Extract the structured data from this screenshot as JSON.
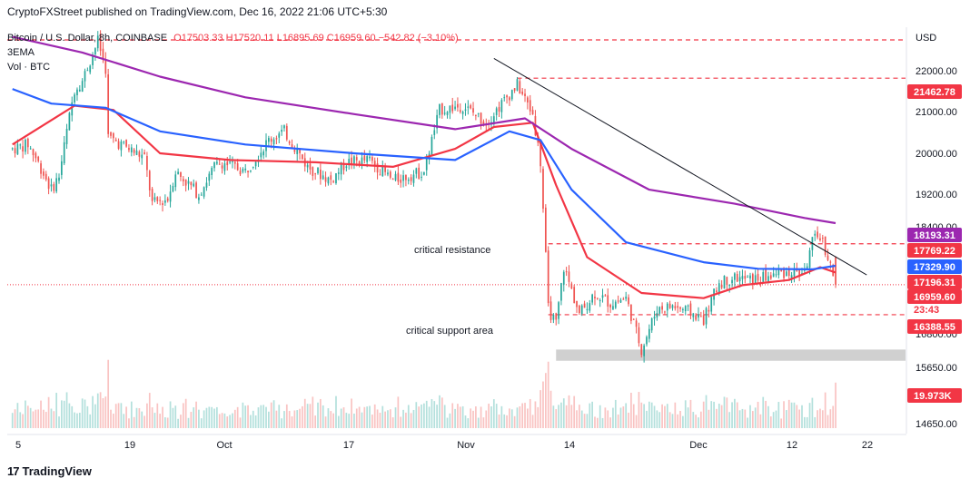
{
  "header": {
    "text": "CryptoFXStreet published on TradingView.com, Dec 16, 2022 21:06 UTC+5:30"
  },
  "legend": {
    "symbol": "Bitcoin / U.S. Dollar, 8h, COINBASE",
    "ohlc": "O17503.33  H17520.11  L16895.69  C16959.60  −542.82 (−3.10%)",
    "indicator": "3EMA",
    "volume": "Vol · BTC"
  },
  "axis": {
    "currency": "USD",
    "price_ticks": [
      "22000.00",
      "21000.00",
      "20000.00",
      "19200.00",
      "18400.00",
      "16800.00",
      "15650.00",
      "14650.00"
    ],
    "time_ticks": [
      "5",
      "19",
      "Oct",
      "17",
      "Nov",
      "14",
      "Dec",
      "12",
      "22"
    ]
  },
  "price_labels": [
    {
      "text": "21462.78",
      "color": "#f23645"
    },
    {
      "text": "18193.31",
      "color": "#9c27b0"
    },
    {
      "text": "17769.22",
      "color": "#f23645"
    },
    {
      "text": "17329.90",
      "color": "#2962ff"
    },
    {
      "text": "17196.31",
      "color": "#f23645"
    },
    {
      "text": "16959.60",
      "color": "#f23645"
    },
    {
      "text": "23:43",
      "color": "#f23645"
    },
    {
      "text": "16388.55",
      "color": "#f23645"
    },
    {
      "text": "19.973K",
      "color": "#f23645"
    }
  ],
  "annotations": {
    "resistance": "critical resistance",
    "support": "critical support area"
  },
  "footer": {
    "logo": "17",
    "brand": "TradingView"
  },
  "colors": {
    "up": "#26a69a",
    "down": "#ef5350",
    "ema_fast": "#f23645",
    "ema_mid": "#2962ff",
    "ema_slow": "#9c27b0",
    "level": "#f23645",
    "support_zone": "#c8c8c8"
  },
  "chart_data": {
    "type": "candlestick",
    "title": "Bitcoin / U.S. Dollar, 8h, COINBASE",
    "ylabel": "USD",
    "ylim": [
      14400,
      22700
    ],
    "yscale": "log",
    "grid": false,
    "last": {
      "open": 17503.33,
      "high": 17520.11,
      "low": 16895.69,
      "close": 16959.6,
      "change": -542.82,
      "change_pct": -3.1
    },
    "price_path": [
      [
        "2022-09-01",
        19800
      ],
      [
        "2022-09-03",
        19900
      ],
      [
        "2022-09-04",
        19600
      ],
      [
        "2022-09-06",
        18900
      ],
      [
        "2022-09-07",
        19200
      ],
      [
        "2022-09-09",
        21200
      ],
      [
        "2022-09-10",
        21400
      ],
      [
        "2022-09-12",
        22400
      ],
      [
        "2022-09-13",
        21700
      ],
      [
        "2022-09-13",
        20100
      ],
      [
        "2022-09-16",
        19800
      ],
      [
        "2022-09-18",
        19600
      ],
      [
        "2022-09-19",
        18600
      ],
      [
        "2022-09-21",
        18700
      ],
      [
        "2022-09-22",
        19300
      ],
      [
        "2022-09-25",
        18800
      ],
      [
        "2022-09-27",
        19400
      ],
      [
        "2022-09-28",
        19500
      ],
      [
        "2022-10-01",
        19300
      ],
      [
        "2022-10-04",
        20000
      ],
      [
        "2022-10-06",
        20200
      ],
      [
        "2022-10-09",
        19400
      ],
      [
        "2022-10-12",
        19100
      ],
      [
        "2022-10-14",
        19500
      ],
      [
        "2022-10-17",
        19550
      ],
      [
        "2022-10-20",
        19100
      ],
      [
        "2022-10-22",
        19200
      ],
      [
        "2022-10-24",
        19300
      ],
      [
        "2022-10-26",
        20700
      ],
      [
        "2022-10-29",
        20800
      ],
      [
        "2022-11-01",
        20400
      ],
      [
        "2022-11-05",
        21300
      ],
      [
        "2022-11-07",
        20600
      ],
      [
        "2022-11-08",
        19500
      ],
      [
        "2022-11-09",
        16500
      ],
      [
        "2022-11-10",
        16200
      ],
      [
        "2022-11-11",
        17300
      ],
      [
        "2022-11-13",
        16400
      ],
      [
        "2022-11-15",
        16800
      ],
      [
        "2022-11-17",
        16600
      ],
      [
        "2022-11-19",
        16700
      ],
      [
        "2022-11-21",
        15750
      ],
      [
        "2022-11-23",
        16500
      ],
      [
        "2022-11-25",
        16550
      ],
      [
        "2022-11-27",
        16450
      ],
      [
        "2022-11-29",
        16300
      ],
      [
        "2022-12-01",
        17000
      ],
      [
        "2022-12-03",
        17100
      ],
      [
        "2022-12-05",
        17050
      ],
      [
        "2022-12-07",
        17100
      ],
      [
        "2022-12-09",
        17200
      ],
      [
        "2022-12-12",
        17200
      ],
      [
        "2022-12-13",
        17800
      ],
      [
        "2022-12-14",
        17950
      ],
      [
        "2022-12-15",
        17500
      ],
      [
        "2022-12-16",
        16959.6
      ]
    ],
    "series": [
      {
        "name": "EMA",
        "color": "#f23645",
        "values": [
          [
            "2022-09-01",
            19900
          ],
          [
            "2022-09-09",
            20800
          ],
          [
            "2022-09-14",
            20700
          ],
          [
            "2022-09-20",
            19700
          ],
          [
            "2022-09-29",
            19550
          ],
          [
            "2022-10-10",
            19500
          ],
          [
            "2022-10-20",
            19400
          ],
          [
            "2022-10-28",
            19800
          ],
          [
            "2022-11-02",
            20300
          ],
          [
            "2022-11-07",
            20400
          ],
          [
            "2022-11-10",
            19000
          ],
          [
            "2022-11-14",
            17500
          ],
          [
            "2022-11-21",
            16800
          ],
          [
            "2022-11-29",
            16700
          ],
          [
            "2022-12-04",
            16950
          ],
          [
            "2022-12-10",
            17050
          ],
          [
            "2022-12-14",
            17300
          ],
          [
            "2022-12-16",
            17196.31
          ]
        ]
      },
      {
        "name": "EMA",
        "color": "#2962ff",
        "values": [
          [
            "2022-09-01",
            21200
          ],
          [
            "2022-09-06",
            20850
          ],
          [
            "2022-09-13",
            20750
          ],
          [
            "2022-09-20",
            20200
          ],
          [
            "2022-10-01",
            19900
          ],
          [
            "2022-10-15",
            19700
          ],
          [
            "2022-10-28",
            19550
          ],
          [
            "2022-11-04",
            20200
          ],
          [
            "2022-11-08",
            20000
          ],
          [
            "2022-11-12",
            18900
          ],
          [
            "2022-11-19",
            17800
          ],
          [
            "2022-11-29",
            17400
          ],
          [
            "2022-12-06",
            17270
          ],
          [
            "2022-12-13",
            17260
          ],
          [
            "2022-12-16",
            17329.9
          ]
        ]
      },
      {
        "name": "EMA",
        "color": "#9c27b0",
        "values": [
          [
            "2022-09-01",
            22500
          ],
          [
            "2022-09-10",
            22100
          ],
          [
            "2022-09-20",
            21500
          ],
          [
            "2022-10-01",
            21000
          ],
          [
            "2022-10-15",
            20600
          ],
          [
            "2022-10-28",
            20250
          ],
          [
            "2022-11-06",
            20500
          ],
          [
            "2022-11-12",
            19800
          ],
          [
            "2022-11-22",
            18900
          ],
          [
            "2022-12-03",
            18600
          ],
          [
            "2022-12-12",
            18300
          ],
          [
            "2022-12-16",
            18193.31
          ]
        ]
      }
    ],
    "levels": [
      21462.78,
      17769.22,
      16959.6,
      16388.55
    ],
    "support_zone": [
      15550,
      15750
    ],
    "trendline": [
      [
        "2022-11-02",
        21950
      ],
      [
        "2022-12-20",
        17150
      ]
    ],
    "last_volume": "19.973K"
  }
}
